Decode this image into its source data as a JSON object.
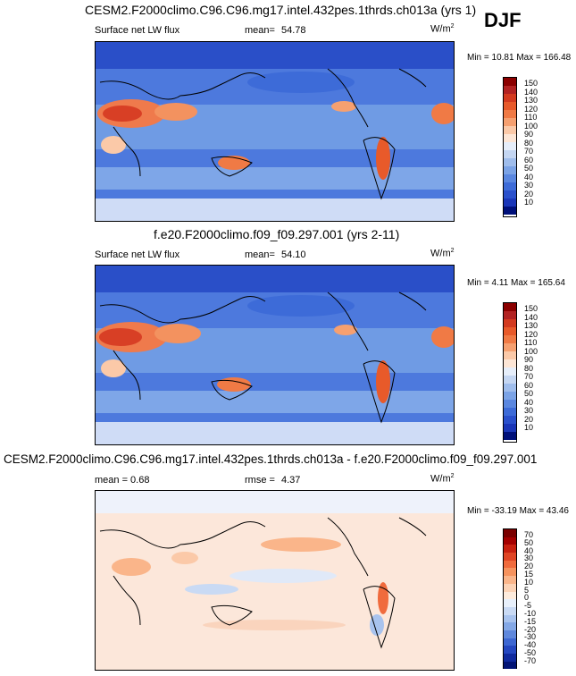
{
  "season": "DJF",
  "panels": [
    {
      "title": "CESM2.F2000climo.C96.C96.mg17.intel.432pes.1thrds.ch013a (yrs 1)",
      "left_label": "Surface net LW flux",
      "stat_label": "mean=",
      "stat_value": "54.78",
      "unit": "W/m",
      "unit_sup": "2",
      "minmax": "Min = 10.81 Max = 166.48",
      "colorbar_labels": [
        "150",
        "140",
        "130",
        "120",
        "110",
        "100",
        "90",
        "80",
        "70",
        "60",
        "50",
        "40",
        "30",
        "20",
        "10"
      ]
    },
    {
      "title": "f.e20.F2000climo.f09_f09.297.001 (yrs 2-11)",
      "left_label": "Surface net LW flux",
      "stat_label": "mean=",
      "stat_value": "54.10",
      "unit": "W/m",
      "unit_sup": "2",
      "minmax": "Min = 4.11 Max = 165.64",
      "colorbar_labels": [
        "150",
        "140",
        "130",
        "120",
        "110",
        "100",
        "90",
        "80",
        "70",
        "60",
        "50",
        "40",
        "30",
        "20",
        "10"
      ]
    },
    {
      "title": "CESM2.F2000climo.C96.C96.mg17.intel.432pes.1thrds.ch013a - f.e20.F2000climo.f09_f09.297.001",
      "left_label": "mean =  0.68",
      "stat_label": "rmse =",
      "stat_value": "4.37",
      "unit": "W/m",
      "unit_sup": "2",
      "minmax": "Min = -33.19 Max = 43.46",
      "colorbar_labels": [
        "70",
        "50",
        "40",
        "30",
        "20",
        "15",
        "10",
        "5",
        "0",
        "-5",
        "-10",
        "-15",
        "-20",
        "-30",
        "-40",
        "-50",
        "-70"
      ]
    }
  ],
  "colors": {
    "abs_scale": [
      "#8b0000",
      "#b22222",
      "#d33a1f",
      "#e85a2a",
      "#f07a45",
      "#f6a070",
      "#fbc9a8",
      "#fde6d6",
      "#e6eefa",
      "#c4d6f2",
      "#9fbdec",
      "#7ba3e6",
      "#5a87e0",
      "#3d6bd8",
      "#2a50cc",
      "#1a36b8",
      "#0b1f96",
      "#00107a"
    ],
    "diff_scale": [
      "#7a0000",
      "#a40000",
      "#c8200f",
      "#e04524",
      "#f06b3d",
      "#f6935e",
      "#fab58a",
      "#fcd3b6",
      "#fdebdc",
      "#e8f0fb",
      "#c9daf4",
      "#a8c3ee",
      "#84a8e6",
      "#5f88dd",
      "#3d67d2",
      "#2447c0",
      "#102a9e",
      "#031576"
    ]
  }
}
